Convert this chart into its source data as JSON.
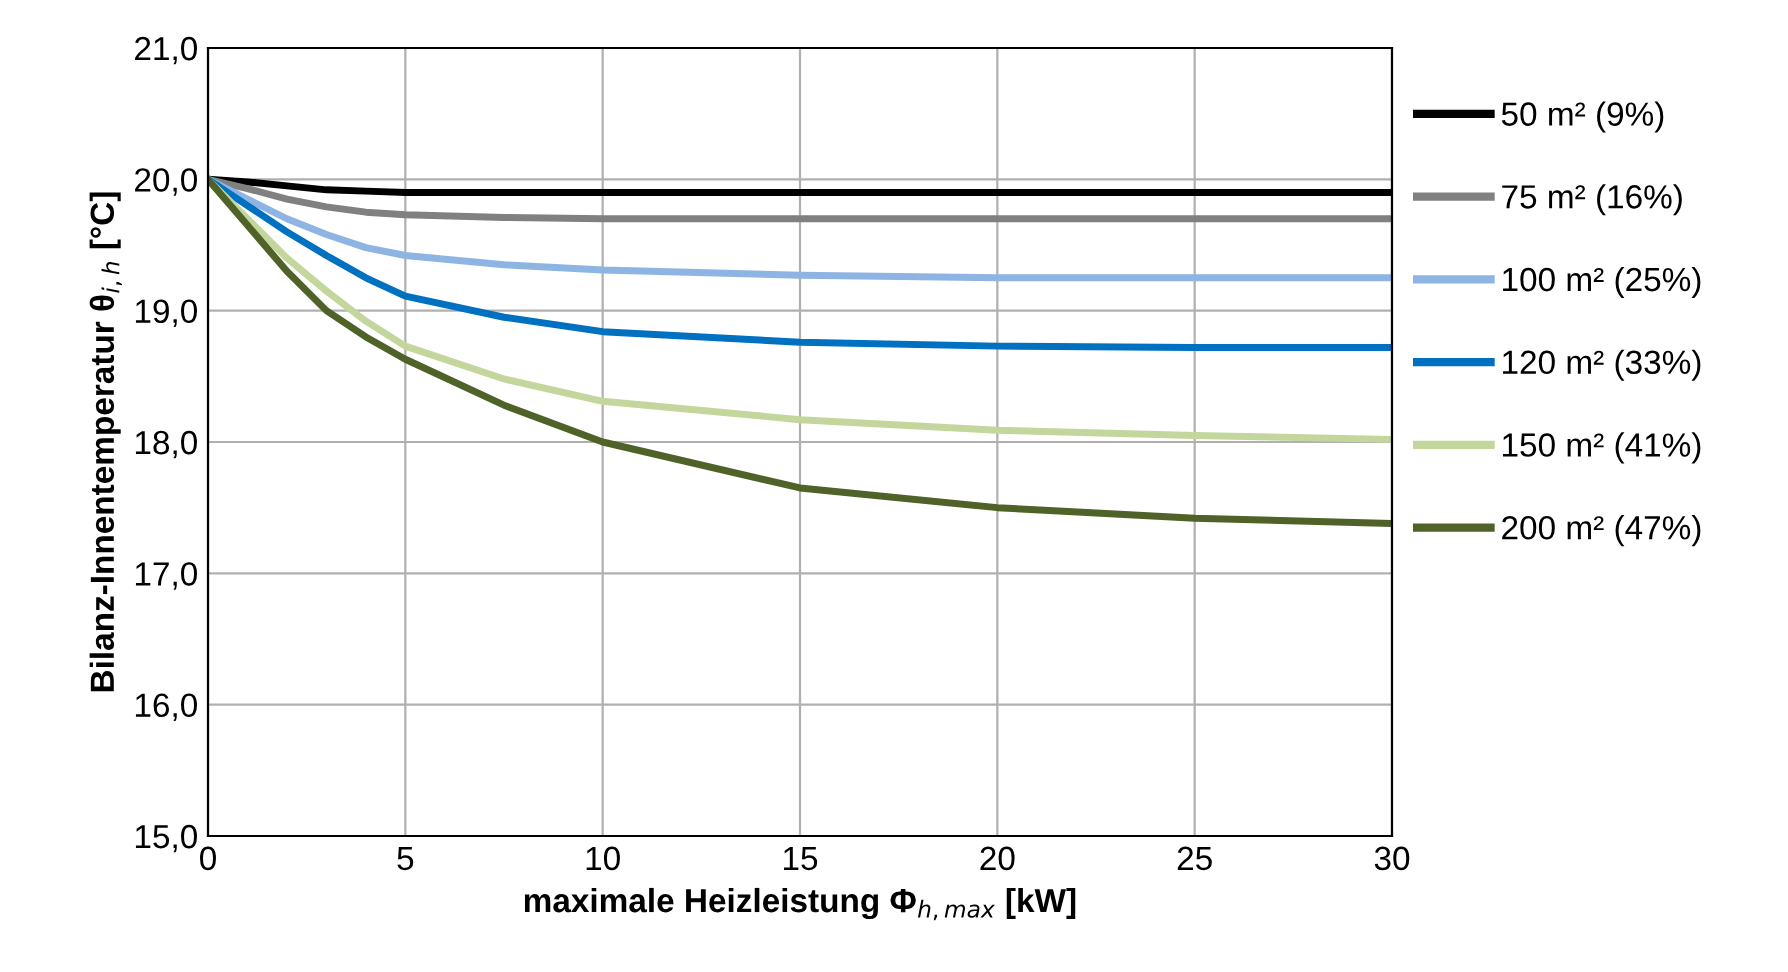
{
  "chart_data": {
    "type": "line",
    "xlabel": "maximale Heizleistung Φ$_{h,max}$ [kW]",
    "ylabel": "Bilanz-Innentemperatur θ$_{i,h}$ [°C]",
    "x": [
      0,
      1,
      2,
      3,
      4,
      5,
      7.5,
      10,
      15,
      20,
      25,
      30
    ],
    "series": [
      {
        "name": "50 m² (9%)",
        "color": "#000000",
        "values": [
          20,
          19.98,
          19.95,
          19.92,
          19.91,
          19.9,
          19.9,
          19.9,
          19.9,
          19.9,
          19.9,
          19.9
        ]
      },
      {
        "name": "75 m² (16%)",
        "color": "#808080",
        "values": [
          20,
          19.93,
          19.85,
          19.79,
          19.75,
          19.73,
          19.71,
          19.7,
          19.7,
          19.7,
          19.7,
          19.7
        ]
      },
      {
        "name": "100 m² (25%)",
        "color": "#8db4e2",
        "values": [
          20,
          19.85,
          19.7,
          19.58,
          19.48,
          19.42,
          19.35,
          19.31,
          19.27,
          19.25,
          19.25,
          19.25
        ]
      },
      {
        "name": "120 m² (33%)",
        "color": "#0070c0",
        "values": [
          20,
          19.8,
          19.6,
          19.42,
          19.25,
          19.11,
          18.95,
          18.84,
          18.76,
          18.73,
          18.72,
          18.72
        ]
      },
      {
        "name": "150 m² (41%)",
        "color": "#c3d69b",
        "values": [
          20,
          19.7,
          19.4,
          19.15,
          18.92,
          18.73,
          18.48,
          18.31,
          18.17,
          18.09,
          18.05,
          18.02
        ]
      },
      {
        "name": "200 m² (47%)",
        "color": "#4f6228",
        "values": [
          20,
          19.65,
          19.3,
          19.0,
          18.8,
          18.63,
          18.28,
          18.0,
          17.65,
          17.5,
          17.42,
          17.38
        ]
      }
    ],
    "xlim": [
      0,
      30
    ],
    "xticks": [
      0,
      5,
      10,
      15,
      20,
      25,
      30
    ],
    "ylim": [
      15,
      21
    ],
    "yticks": [
      {
        "value": 15,
        "label": "15,0"
      },
      {
        "value": 16,
        "label": "16,0"
      },
      {
        "value": 17,
        "label": "17,0"
      },
      {
        "value": 18,
        "label": "18,0"
      },
      {
        "value": 19,
        "label": "19,0"
      },
      {
        "value": 20,
        "label": "20,0"
      },
      {
        "value": 21,
        "label": "21,0"
      }
    ],
    "grid": true,
    "legend": "right",
    "marker": "none",
    "line_style": "solid"
  }
}
